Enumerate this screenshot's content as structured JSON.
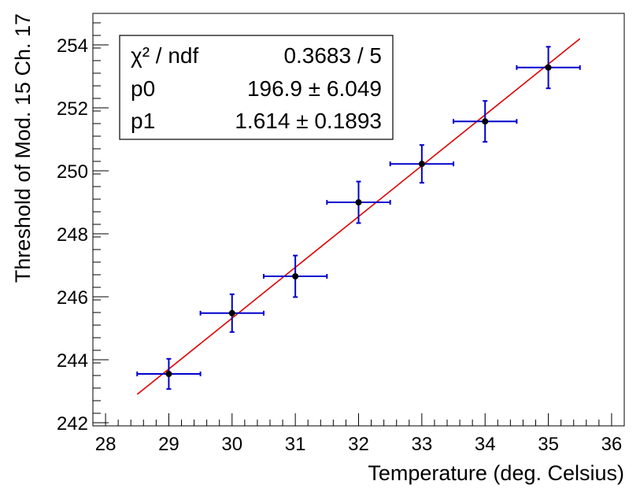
{
  "chart_data": {
    "type": "scatter",
    "xlabel": "Temperature (deg. Celsius)",
    "ylabel": "Threshold of Mod. 15 Ch. 17",
    "xlim": [
      27.8,
      36.2
    ],
    "ylim": [
      241.9,
      255.0
    ],
    "x_ticks": [
      "28",
      "29",
      "30",
      "31",
      "32",
      "33",
      "34",
      "35",
      "36"
    ],
    "y_ticks": [
      "242",
      "244",
      "246",
      "248",
      "250",
      "252",
      "254"
    ],
    "grid": false,
    "points": [
      {
        "x": 29,
        "y": 243.55,
        "xerr": 0.5,
        "yerr": 0.48
      },
      {
        "x": 30,
        "y": 245.48,
        "xerr": 0.5,
        "yerr": 0.6
      },
      {
        "x": 31,
        "y": 246.65,
        "xerr": 0.5,
        "yerr": 0.66
      },
      {
        "x": 32,
        "y": 249.0,
        "xerr": 0.5,
        "yerr": 0.66
      },
      {
        "x": 33,
        "y": 250.22,
        "xerr": 0.5,
        "yerr": 0.6
      },
      {
        "x": 34,
        "y": 251.57,
        "xerr": 0.5,
        "yerr": 0.65
      },
      {
        "x": 35,
        "y": 253.28,
        "xerr": 0.5,
        "yerr": 0.66
      }
    ],
    "fit": {
      "type": "linear",
      "p0": 196.9,
      "p1": 1.614,
      "x_range": [
        28.5,
        35.5
      ],
      "color": "#e00000"
    },
    "marker_color": "#000000",
    "errorbar_color": "#0000cc",
    "stats_box": {
      "rows": [
        {
          "label": "χ² / ndf",
          "value": "0.3683 / 5"
        },
        {
          "label": "p0",
          "value": "196.9 ± 6.049"
        },
        {
          "label": "p1",
          "value": "1.614 ± 0.1893"
        }
      ],
      "placement": "top-left"
    }
  }
}
